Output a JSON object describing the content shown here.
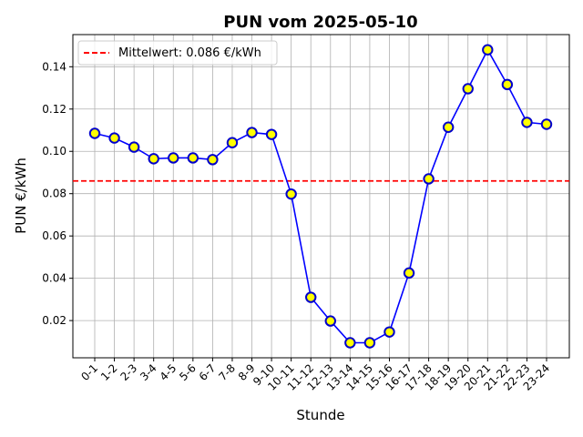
{
  "chart_data": {
    "type": "line",
    "title": "PUN vom 2025-05-10",
    "xlabel": "Stunde",
    "ylabel": "PUN €/kWh",
    "categories": [
      "0-1",
      "1-2",
      "2-3",
      "3-4",
      "4-5",
      "5-6",
      "6-7",
      "7-8",
      "8-9",
      "9-10",
      "10-11",
      "11-12",
      "12-13",
      "13-14",
      "14-15",
      "15-16",
      "16-17",
      "17-18",
      "18-19",
      "19-20",
      "20-21",
      "21-22",
      "22-23",
      "23-24"
    ],
    "series": [
      {
        "values": [
          0.1085,
          0.1063,
          0.102,
          0.0965,
          0.0969,
          0.0969,
          0.0961,
          0.1041,
          0.1089,
          0.108,
          0.0798,
          0.031,
          0.0198,
          0.0095,
          0.0095,
          0.0146,
          0.0425,
          0.087,
          0.1114,
          0.1296,
          0.148,
          0.1316,
          0.1137,
          0.1128
        ],
        "color": "#0000ff",
        "marker_fill": "#ffff00",
        "marker_edge": "#0000cc"
      }
    ],
    "reference_line": {
      "value": 0.086,
      "label": "Mittelwert: 0.086 €/kWh",
      "color": "#ff0000",
      "style": "dashed"
    },
    "yticks": [
      0.02,
      0.04,
      0.06,
      0.08,
      0.1,
      0.12,
      0.14
    ],
    "ytick_labels": [
      "0.02",
      "0.04",
      "0.06",
      "0.08",
      "0.10",
      "0.12",
      "0.14"
    ],
    "ylim": [
      0.0024,
      0.1552
    ],
    "grid": true,
    "legend_position": "top-left"
  }
}
